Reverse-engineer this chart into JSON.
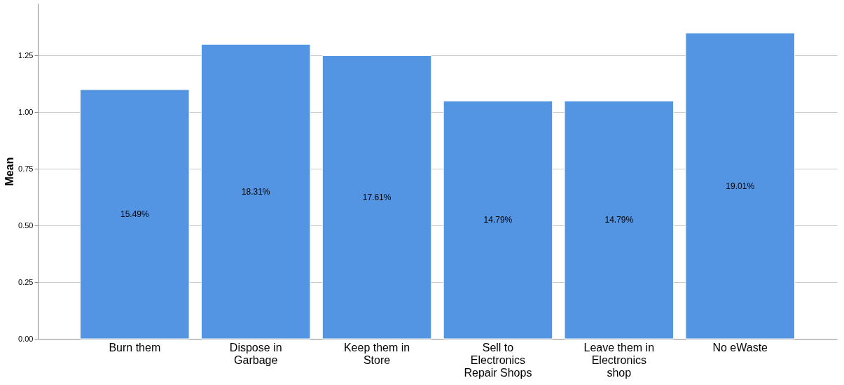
{
  "chart_data": {
    "type": "bar",
    "ylabel": "Mean",
    "categories": [
      "Burn them",
      "Dispose in Garbage",
      "Keep them in Store",
      "Sell to Electronics Repair Shops",
      "Leave them in Electronics shop",
      "No eWaste"
    ],
    "values": [
      1.1,
      1.3,
      1.25,
      1.05,
      1.05,
      1.35
    ],
    "color": "#5394e3",
    "annotations": [
      "15.49%",
      "18.31%",
      "17.61%",
      "14.79%",
      "14.79%",
      "19.01%"
    ],
    "ylim": [
      0,
      1.48
    ],
    "yticks": [
      {
        "value": 0,
        "label": "0.00"
      },
      {
        "value": 0.25,
        "label": "0.25"
      },
      {
        "value": 0.5,
        "label": "0.50"
      },
      {
        "value": 0.75,
        "label": "0.75"
      },
      {
        "value": 1,
        "label": "1.00"
      },
      {
        "value": 1.25,
        "label": "1.25"
      }
    ],
    "grid": "y"
  }
}
